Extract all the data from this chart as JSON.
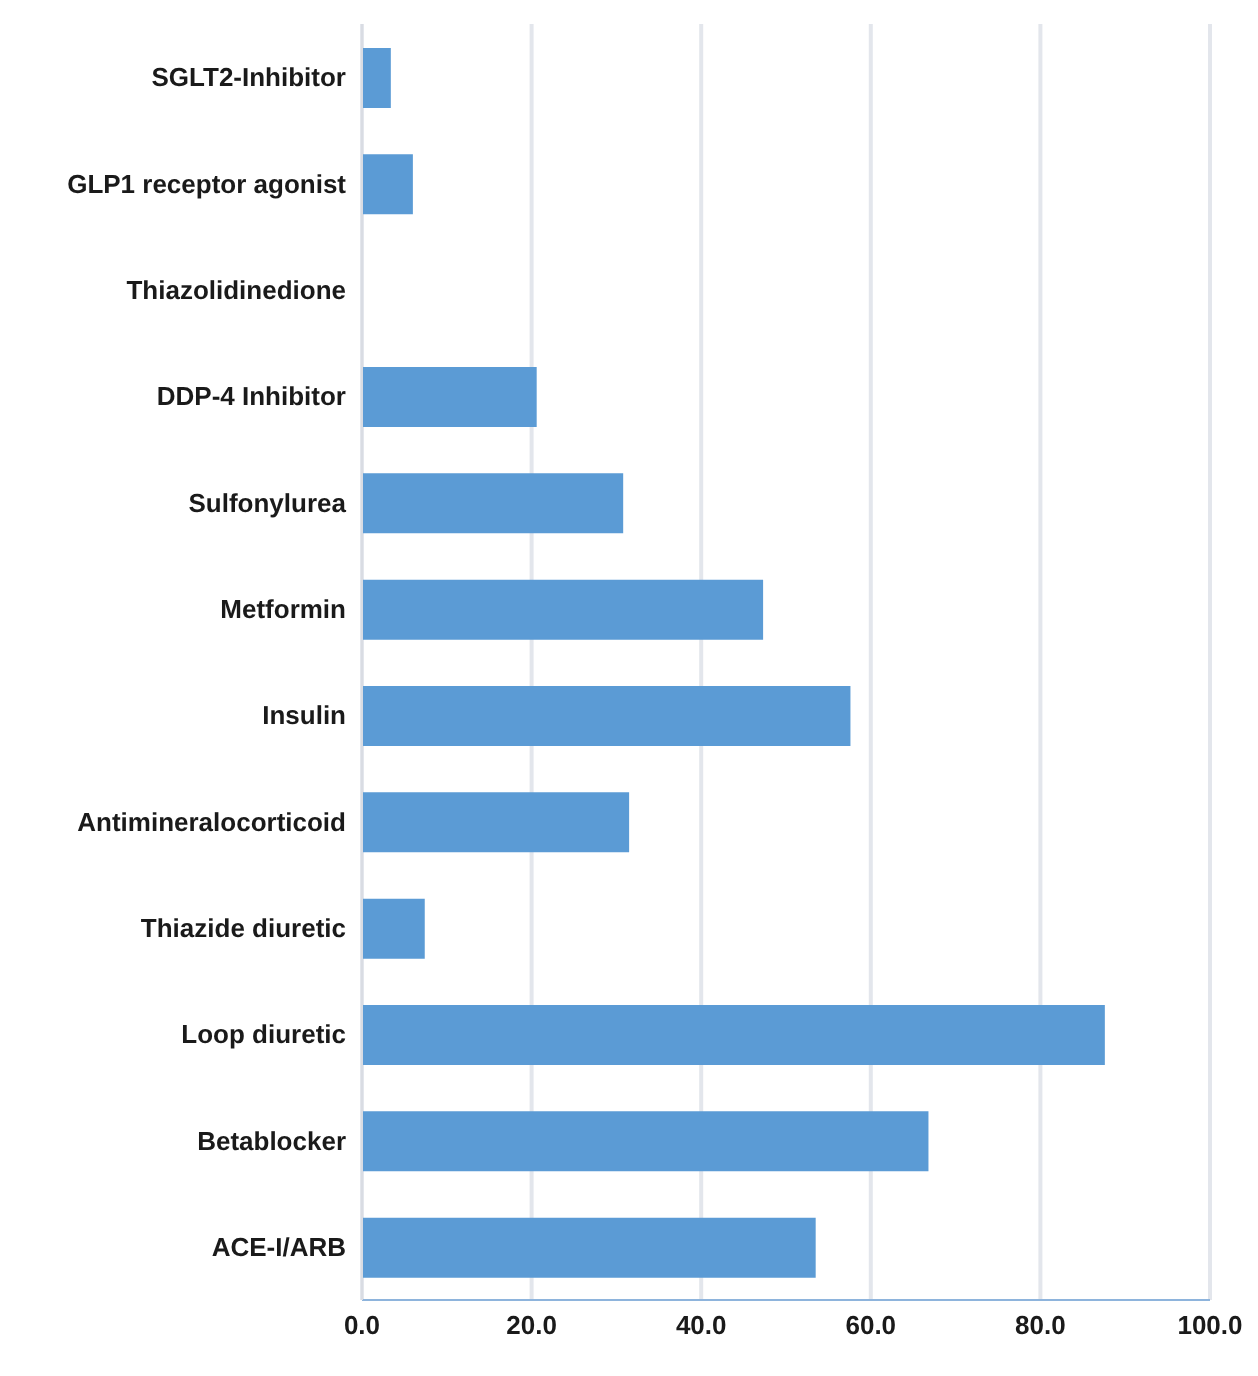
{
  "chart_data": {
    "type": "bar",
    "orientation": "horizontal",
    "categories": [
      "SGLT2-Inhibitor",
      "GLP1 receptor agonist",
      "Thiazolidinedione",
      "DDP-4 Inhibitor",
      "Sulfonylurea",
      "Metformin",
      "Insulin",
      "Antimineralocorticoid",
      "Thiazide diuretic",
      "Loop diuretic",
      "Betablocker",
      "ACE-I/ARB"
    ],
    "values": [
      3.4,
      6.0,
      0,
      20.6,
      30.8,
      47.3,
      57.6,
      31.5,
      7.4,
      87.6,
      66.8,
      53.5
    ],
    "color": "#5b9bd5",
    "xlim": [
      0,
      100
    ],
    "xticks": [
      {
        "value": 0,
        "label": "0.0"
      },
      {
        "value": 20,
        "label": "20.0"
      },
      {
        "value": 40,
        "label": "40.0"
      },
      {
        "value": 60,
        "label": "60.0"
      },
      {
        "value": 80,
        "label": "80.0"
      },
      {
        "value": 100,
        "label": "100.0"
      }
    ],
    "grid": "x"
  }
}
